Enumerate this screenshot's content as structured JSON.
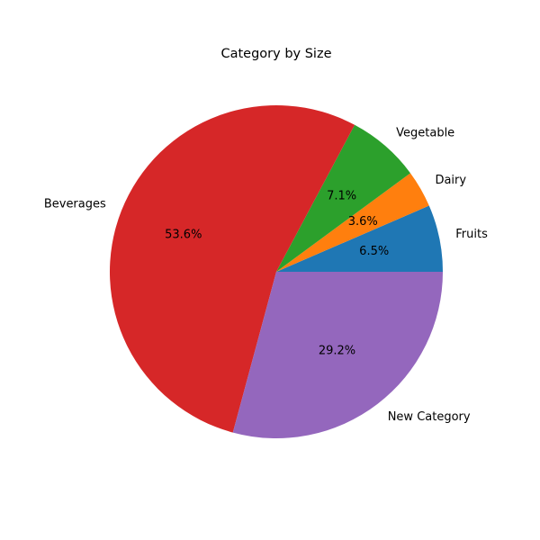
{
  "chart_data": {
    "type": "pie",
    "title": "Category by Size",
    "labels": [
      "Fruits",
      "Dairy",
      "Vegetable",
      "Beverages",
      "New Category"
    ],
    "values": [
      6.5,
      3.6,
      7.1,
      53.6,
      29.2
    ],
    "value_labels": [
      "6.5%",
      "3.6%",
      "7.1%",
      "53.6%",
      "29.2%"
    ],
    "colors": [
      "#1f77b4",
      "#ff7f0e",
      "#2ca02c",
      "#d62728",
      "#9467bd"
    ],
    "start_angle_deg": 0,
    "direction": "counterclockwise"
  }
}
